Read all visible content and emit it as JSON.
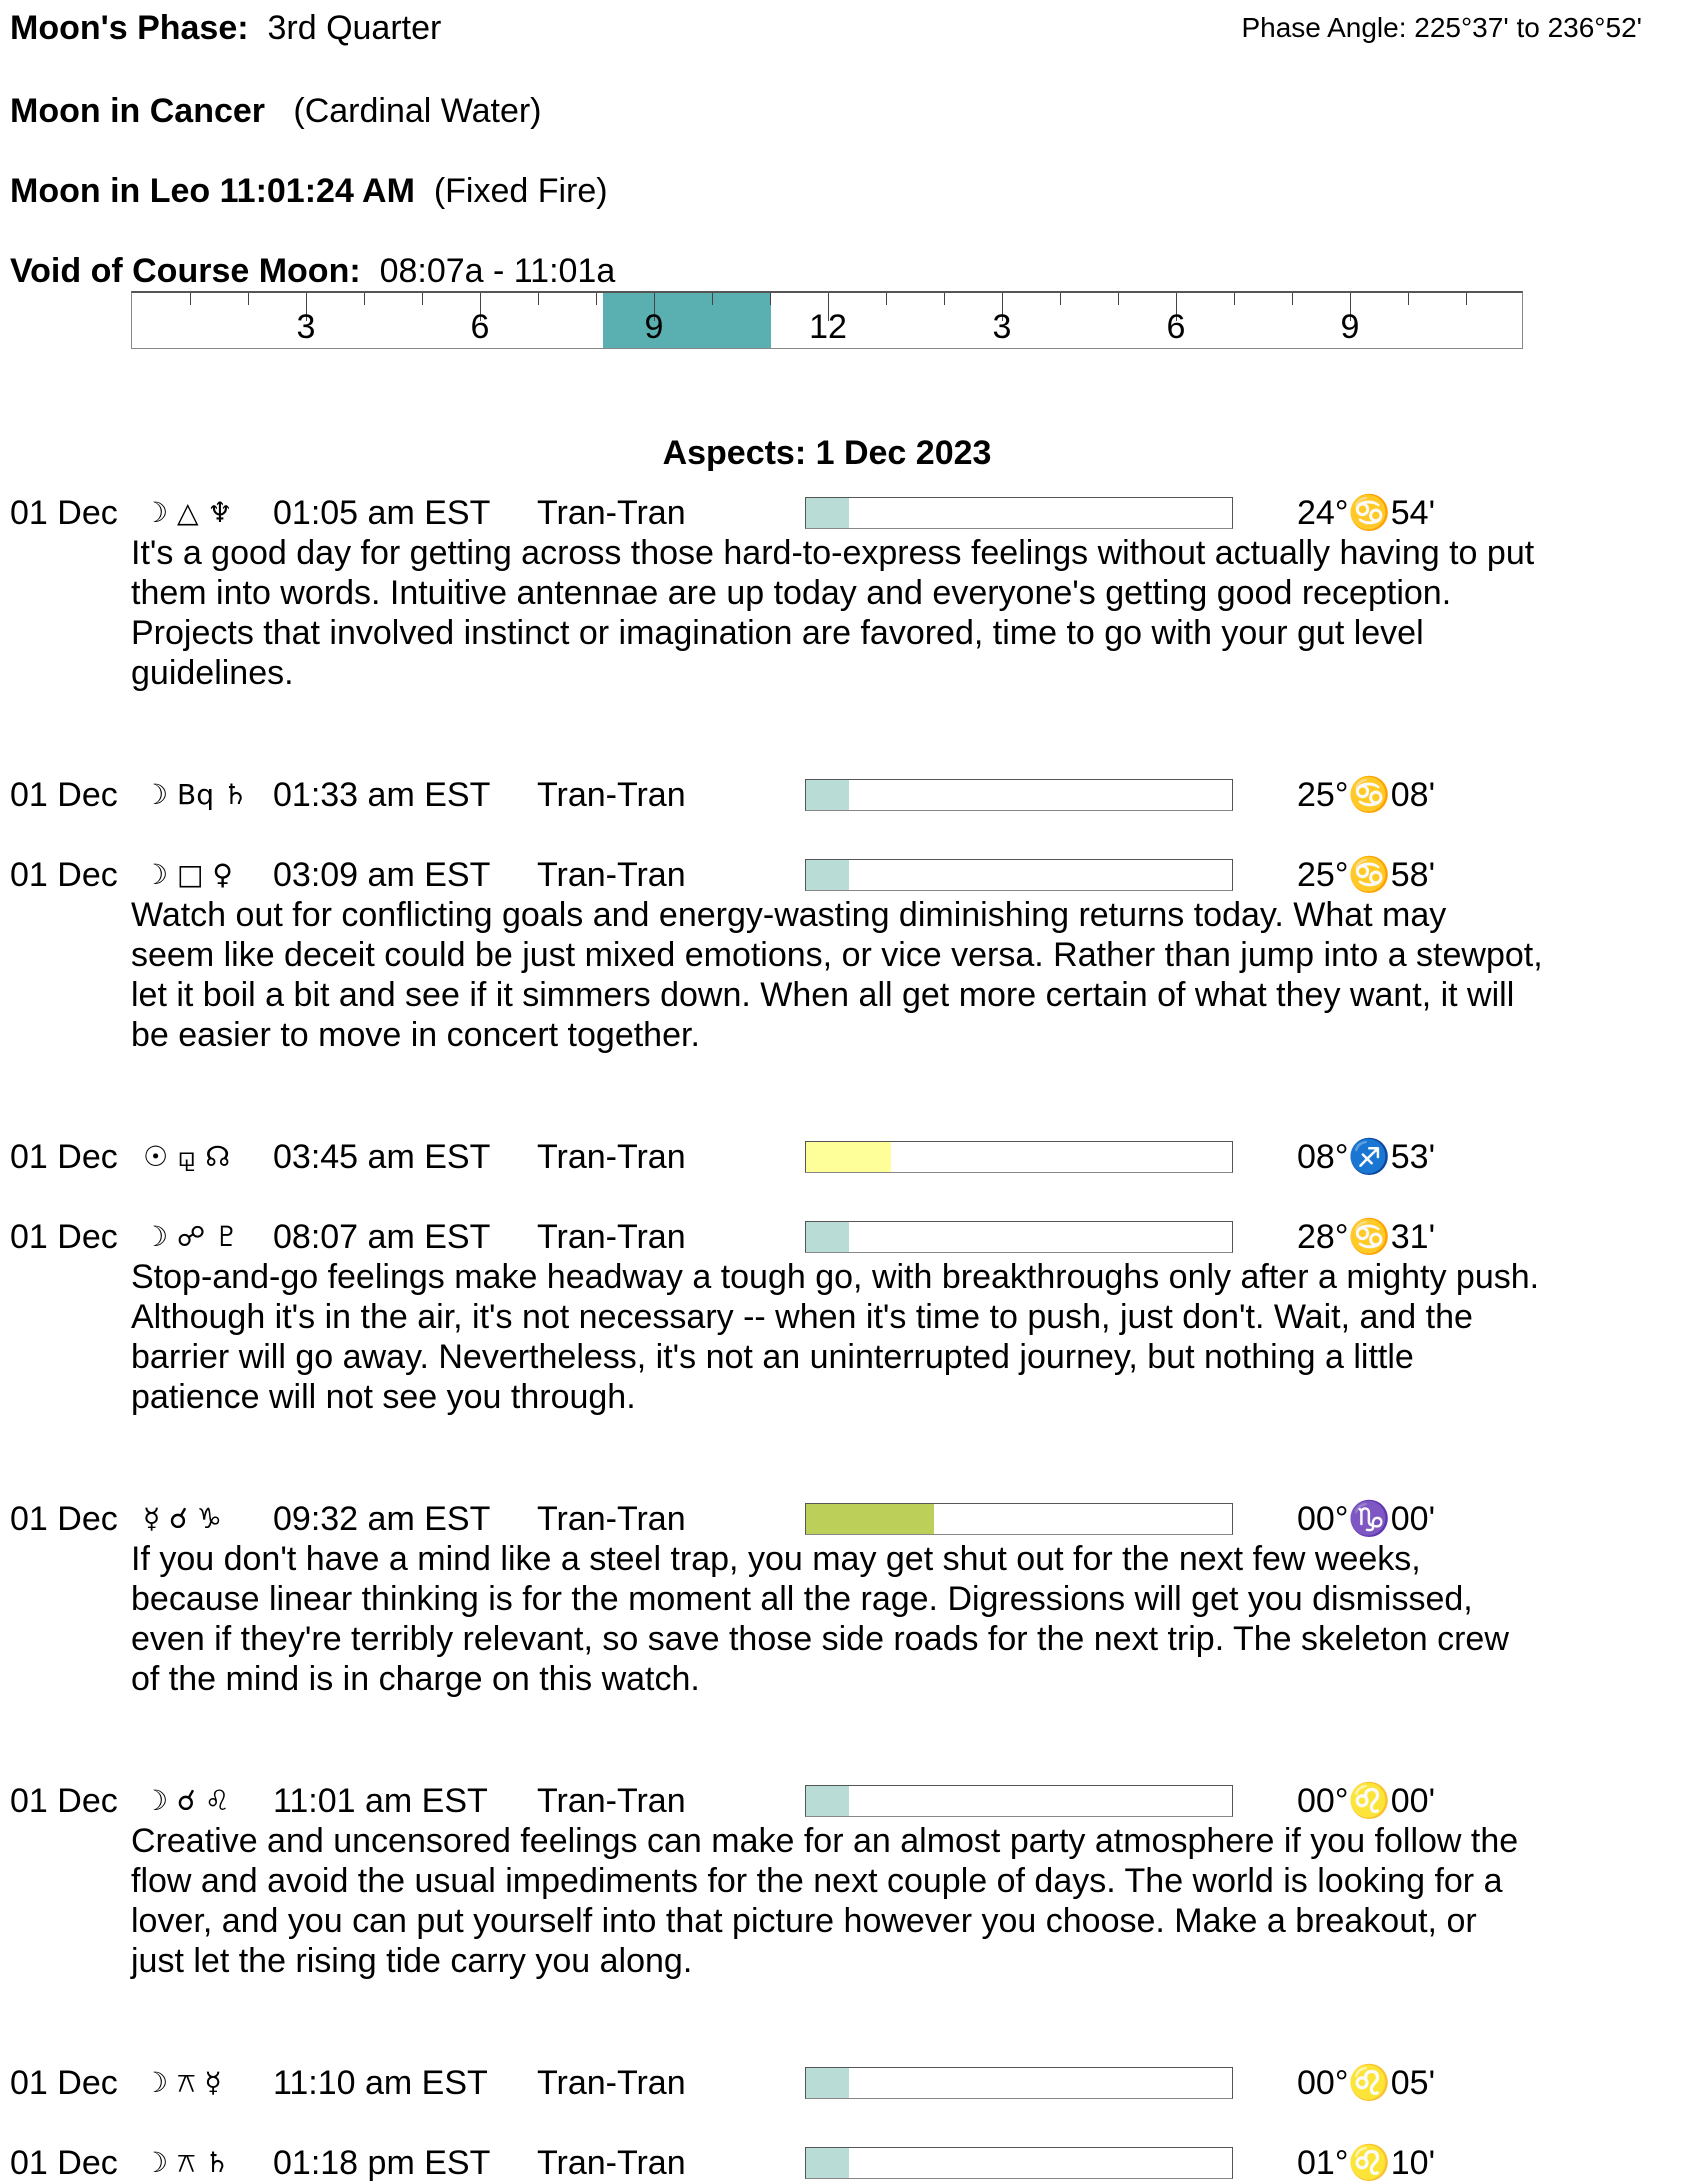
{
  "header": {
    "phase_label": "Moon's Phase:",
    "phase_value": "3rd Quarter",
    "phase_angle": "Phase Angle:  225°37' to 236°52'",
    "moon_sign_label": "Moon in Cancer",
    "moon_sign_value": "(Cardinal Water)",
    "moon_ingress_label": "Moon in Leo 11:01:24 AM",
    "moon_ingress_value": "(Fixed Fire)",
    "voc_label": "Void of Course Moon:",
    "voc_value": "08:07a -  11:01a"
  },
  "ruler": {
    "labels": [
      "3",
      "6",
      "9",
      "12",
      "3",
      "6",
      "9"
    ],
    "label_hours": [
      3,
      6,
      9,
      12,
      15,
      18,
      21
    ],
    "voc_start_hour": 8.12,
    "voc_end_hour": 11.02,
    "voc_color": "#5aafb0"
  },
  "aspects": {
    "title": "Aspects: 1 Dec 2023",
    "colors": {
      "teal": "#b9ddd6",
      "yellow": "#ffff99",
      "green": "#bccf58"
    },
    "rows": [
      {
        "date": "01 Dec",
        "glyphs": "☽ △ ♆",
        "time": "01:05 am EST",
        "type": "Tran-Tran",
        "strength": 0.1,
        "color": "teal",
        "position": "24°♋54'",
        "desc": [
          "It's a good day for getting across those hard-to-express feelings without actually having to put",
          "them into words. Intuitive antennae are up today and everyone's getting good reception.",
          "Projects that involved instinct or imagination are favored, time to go with your gut level",
          "guidelines."
        ]
      },
      {
        "date": "01 Dec",
        "glyphs": "☽ Bq ♄",
        "time": "01:33 am EST",
        "type": "Tran-Tran",
        "strength": 0.1,
        "color": "teal",
        "position": "25°♋08'",
        "desc": []
      },
      {
        "date": "01 Dec",
        "glyphs": "☽ □ ♀",
        "time": "03:09 am EST",
        "type": "Tran-Tran",
        "strength": 0.1,
        "color": "teal",
        "position": "25°♋58'",
        "desc": [
          "Watch out for conflicting goals and energy-wasting diminishing returns today. What may",
          "seem like deceit could be just mixed emotions, or vice versa. Rather than jump into a stewpot,",
          "let it boil a bit and see if it simmers down. When all get more certain of what they want, it will",
          "be easier to move in concert together."
        ]
      },
      {
        "date": "01 Dec",
        "glyphs": "☉ ⚼ ☊",
        "time": "03:45 am EST",
        "type": "Tran-Tran",
        "strength": 0.2,
        "color": "yellow",
        "position": "08°♐53'",
        "desc": []
      },
      {
        "date": "01 Dec",
        "glyphs": "☽ ☍ ♇",
        "time": "08:07 am EST",
        "type": "Tran-Tran",
        "strength": 0.1,
        "color": "teal",
        "position": "28°♋31'",
        "desc": [
          "Stop-and-go feelings make headway a tough go, with breakthroughs only after a mighty push.",
          "Although it's in the air, it's not necessary -- when it's time to push, just don't. Wait, and the",
          "barrier will go away. Nevertheless, it's not an uninterrupted journey, but nothing a little",
          "patience will not see you through."
        ]
      },
      {
        "date": "01 Dec",
        "glyphs": "☿ ☌ ♑",
        "time": "09:32 am EST",
        "type": "Tran-Tran",
        "strength": 0.3,
        "color": "green",
        "position": "00°♑00'",
        "desc": [
          "If you don't have a mind like a steel trap, you may get shut out for the next few weeks,",
          "because linear thinking is for the moment all the rage. Digressions will get you dismissed,",
          "even if they're terribly relevant, so save those side roads for the next trip. The skeleton crew",
          "of the mind is in charge on this watch."
        ]
      },
      {
        "date": "01 Dec",
        "glyphs": "☽ ☌ ♌",
        "time": "11:01 am EST",
        "type": "Tran-Tran",
        "strength": 0.1,
        "color": "teal",
        "position": "00°♌00'",
        "desc": [
          "Creative and uncensored feelings can make for an almost party atmosphere if you follow the",
          "flow and avoid the usual impediments for the next couple of days. The world is looking for a",
          "lover, and you can put yourself into that picture however you choose. Make a breakout, or",
          "just let the rising tide carry you along."
        ]
      },
      {
        "date": "01 Dec",
        "glyphs": "☽ ⚻ ☿",
        "time": "11:10 am EST",
        "type": "Tran-Tran",
        "strength": 0.1,
        "color": "teal",
        "position": "00°♌05'",
        "desc": []
      },
      {
        "date": "01 Dec",
        "glyphs": "☽ ⚻ ♄",
        "time": "01:18 pm EST",
        "type": "Tran-Tran",
        "strength": 0.1,
        "color": "teal",
        "position": "01°♌10'",
        "desc": []
      }
    ]
  }
}
